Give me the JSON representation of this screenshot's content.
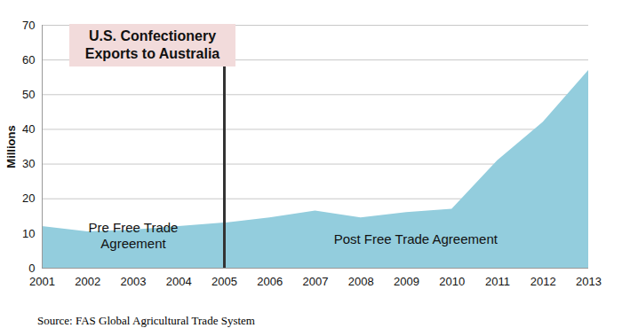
{
  "chart_data": {
    "type": "area",
    "title": "U.S. Confectionery\nExports to Australia",
    "ylabel": "Millions",
    "x": [
      2001,
      2002,
      2003,
      2004,
      2005,
      2006,
      2007,
      2008,
      2009,
      2010,
      2011,
      2012,
      2013
    ],
    "values": [
      12,
      10.5,
      11,
      12,
      13,
      14.5,
      16.5,
      14.5,
      16,
      17,
      31,
      42,
      57
    ],
    "color": "#93cddd",
    "xlim": [
      2001,
      2013
    ],
    "xticks": [
      2001,
      2002,
      2003,
      2004,
      2005,
      2006,
      2007,
      2008,
      2009,
      2010,
      2011,
      2012,
      2013
    ],
    "ylim": [
      0,
      70
    ],
    "yticks": [
      0,
      10,
      20,
      30,
      40,
      50,
      60,
      70
    ],
    "grid": true,
    "divider_x": 2005,
    "annotations": [
      "Pre Free Trade\nAgreement",
      "Post Free Trade Agreement"
    ],
    "source": "Source: FAS Global Agricultural Trade System"
  }
}
